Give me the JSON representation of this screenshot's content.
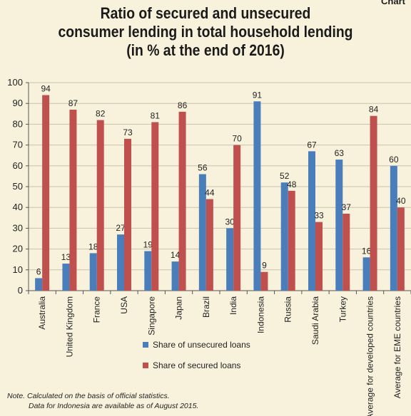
{
  "corner_label": "Chart",
  "chart_data": {
    "type": "bar",
    "title_lines": [
      "Ratio of secured and unsecured",
      "consumer lending in total household lending",
      "(in % at the end of 2016)"
    ],
    "categories": [
      "Australia",
      "United Kingdom",
      "France",
      "USA",
      "Singapore",
      "Japan",
      "Brazil",
      "India",
      "Indonesia",
      "Russia",
      "Saudi Arabia",
      "Turkey",
      "Average for developed countries",
      "Average for EME countries"
    ],
    "series": [
      {
        "name": "Share of unsecured loans",
        "color": "#4a7ebb",
        "values": [
          6,
          13,
          18,
          27,
          19,
          14,
          56,
          30,
          91,
          52,
          67,
          63,
          16,
          60
        ]
      },
      {
        "name": "Share of secured loans",
        "color": "#c0504d",
        "values": [
          94,
          87,
          82,
          73,
          81,
          86,
          44,
          70,
          9,
          48,
          33,
          37,
          84,
          40
        ]
      }
    ],
    "ylim": [
      0,
      100
    ],
    "yticks": [
      0,
      10,
      20,
      30,
      40,
      50,
      60,
      70,
      80,
      90,
      100
    ],
    "grid": true,
    "legend_position": "bottom"
  },
  "notes": [
    "Note. Calculated on the basis of official statistics.",
    "Data for Indonesia are available as of August 2015."
  ]
}
